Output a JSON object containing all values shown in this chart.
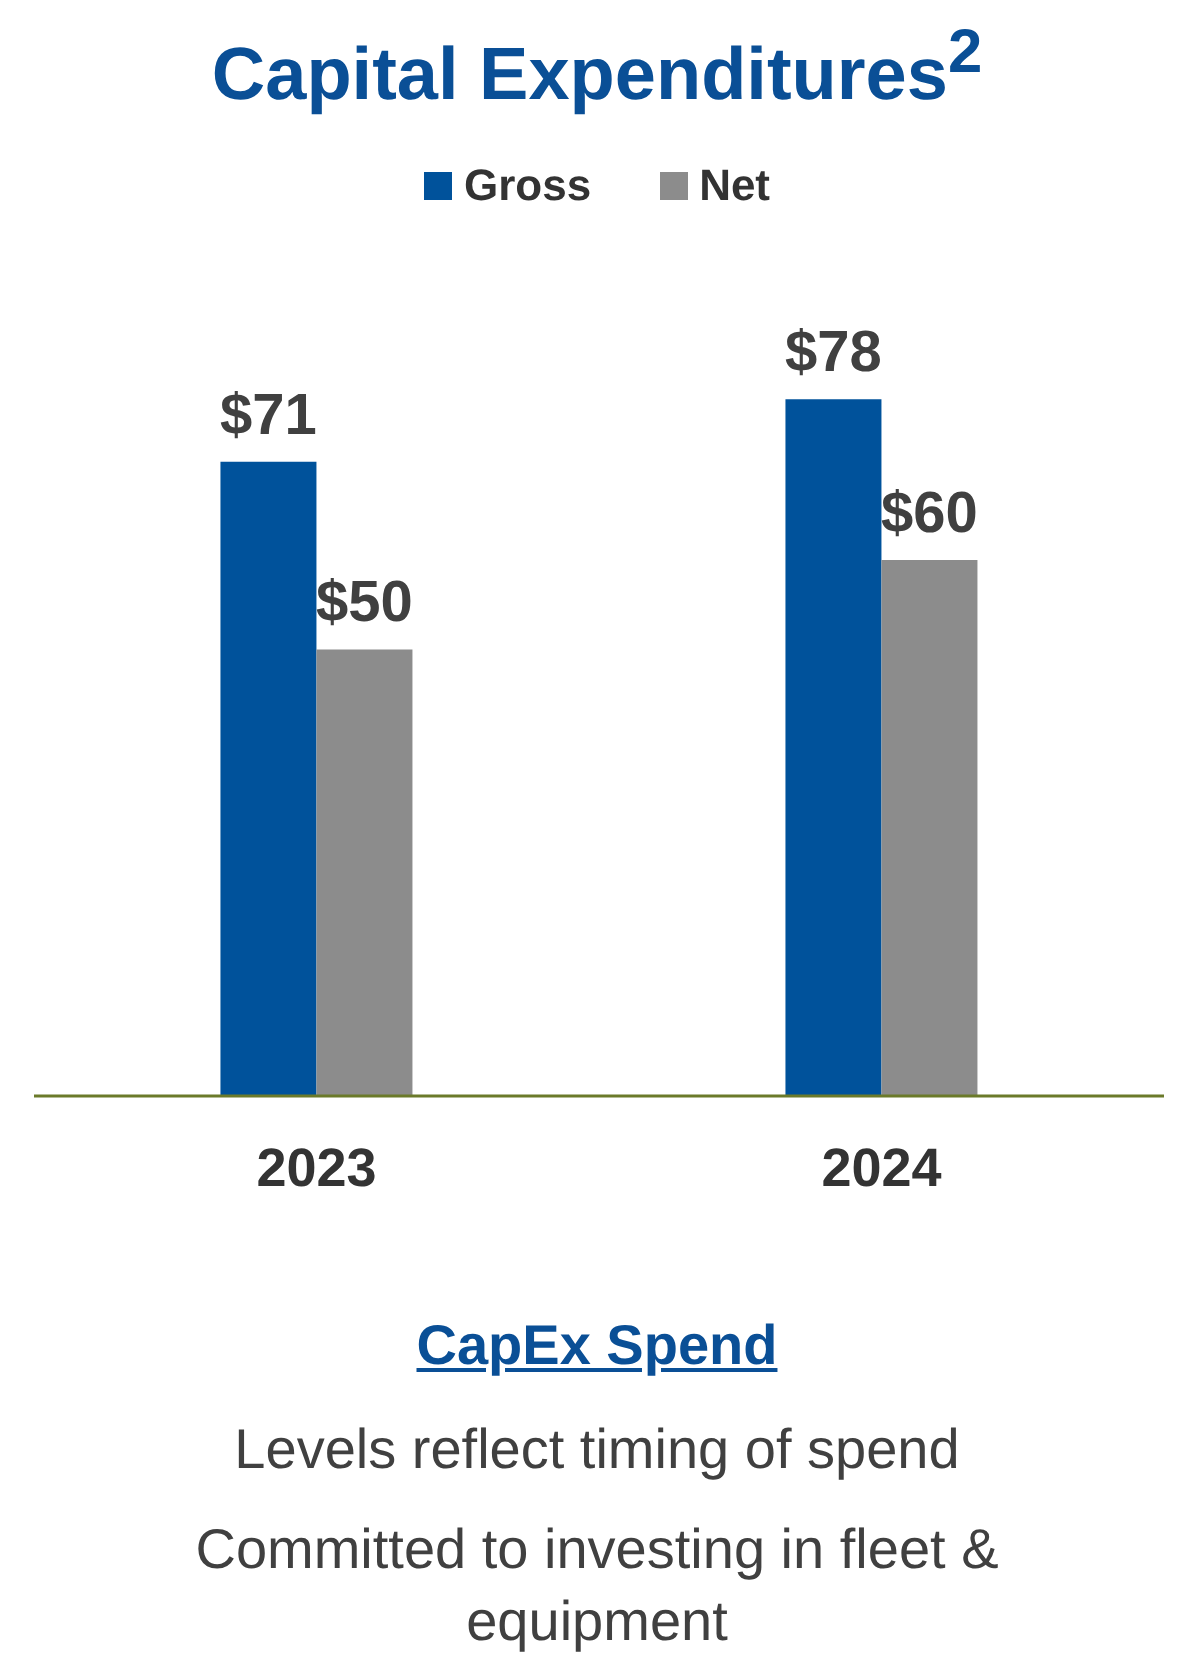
{
  "chart_data": {
    "type": "bar",
    "title": "Capital Expenditures$^{2}$",
    "categories": [
      "2023",
      "2024"
    ],
    "series": [
      {
        "name": "Gross",
        "color": "#00529b",
        "values": [
          71,
          78
        ],
        "value_labels": [
          "$71",
          "$78"
        ]
      },
      {
        "name": "Net",
        "color": "#8c8c8c",
        "values": [
          50,
          60
        ],
        "value_labels": [
          "$50",
          "$60"
        ]
      }
    ],
    "legend": "top",
    "grid": false,
    "annotations": [
      "CapEx Spend",
      "Levels reflect timing of spend",
      "Committed to investing in fleet & equipment"
    ]
  }
}
